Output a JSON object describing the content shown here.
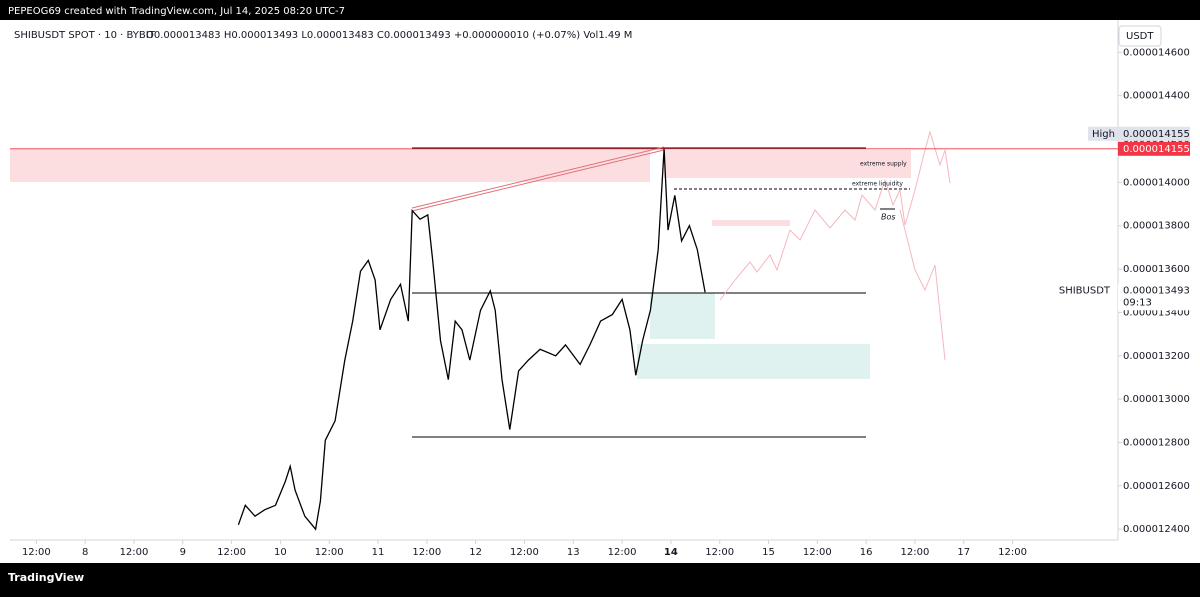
{
  "header": {
    "title": "PEPEOG69 created with TradingView.com, Jul 14, 2025 08:20 UTC-7"
  },
  "chart_data": {
    "type": "line",
    "symbol_legend": "SHIBUSDT SPOT · 10 · BYBIT",
    "ohlc_legend": "O0.000013483 H0.000013493 L0.000013483 C0.000013493 +0.000000010 (+0.07%) Vol1.49 M",
    "currency": "USDT",
    "x": [
      9.57,
      9.64,
      9.74,
      9.84,
      9.95,
      10.05,
      10.1,
      10.15,
      10.25,
      10.36,
      10.41,
      10.46,
      10.56,
      10.66,
      10.74,
      10.82,
      10.9,
      10.97,
      11.02,
      11.13,
      11.23,
      11.31,
      11.35,
      11.43,
      11.51,
      11.56,
      11.64,
      11.72,
      11.79,
      11.86,
      11.94,
      12.05,
      12.15,
      12.2,
      12.27,
      12.35,
      12.44,
      12.54,
      12.66,
      12.82,
      12.92,
      13.07,
      13.17,
      13.28,
      13.4,
      13.5,
      13.58,
      13.64,
      13.71,
      13.79,
      13.87,
      13.93,
      13.97,
      14.04,
      14.11,
      14.19,
      14.27,
      14.35
    ],
    "series": [
      {
        "name": "SHIBUSDT",
        "color": "#000000",
        "values": [
          1.242e-05,
          1.251e-05,
          1.246e-05,
          1.249e-05,
          1.251e-05,
          1.262e-05,
          1.269e-05,
          1.258e-05,
          1.246e-05,
          1.24e-05,
          1.253e-05,
          1.281e-05,
          1.29e-05,
          1.318e-05,
          1.336e-05,
          1.359e-05,
          1.364e-05,
          1.355e-05,
          1.332e-05,
          1.346e-05,
          1.353e-05,
          1.336e-05,
          1.387e-05,
          1.383e-05,
          1.385e-05,
          1.364e-05,
          1.327e-05,
          1.309e-05,
          1.336e-05,
          1.332e-05,
          1.318e-05,
          1.341e-05,
          1.35e-05,
          1.341e-05,
          1.309e-05,
          1.286e-05,
          1.313e-05,
          1.318e-05,
          1.323e-05,
          1.32e-05,
          1.325e-05,
          1.316e-05,
          1.325e-05,
          1.336e-05,
          1.339e-05,
          1.346e-05,
          1.332e-05,
          1.311e-05,
          1.327e-05,
          1.341e-05,
          1.369e-05,
          1.4155e-05,
          1.378e-05,
          1.394e-05,
          1.373e-05,
          1.38e-05,
          1.369e-05,
          1.3493e-05
        ]
      }
    ],
    "xlim": [
      7.23,
      18.58
    ],
    "ylim": [
      1.235e-05,
      1.474e-05
    ],
    "xticks": [
      {
        "value": 7.5,
        "label": "12:00"
      },
      8,
      {
        "value": 8.5,
        "label": "12:00"
      },
      9,
      {
        "value": 9.5,
        "label": "12:00"
      },
      10,
      {
        "value": 10.5,
        "label": "12:00"
      },
      11,
      {
        "value": 11.5,
        "label": "12:00"
      },
      12,
      {
        "value": 12.5,
        "label": "12:00"
      },
      13,
      {
        "value": 13.5,
        "label": "12:00"
      },
      14,
      {
        "value": 14.5,
        "label": "12:00"
      },
      15,
      {
        "value": 15.5,
        "label": "12:00"
      },
      16,
      {
        "value": 16.5,
        "label": "12:00"
      },
      17,
      {
        "value": 17.5,
        "label": "12:00"
      }
    ],
    "yticks": [
      {
        "value": 1.24e-05,
        "label": "0.000012400"
      },
      {
        "value": 1.26e-05,
        "label": "0.000012600"
      },
      {
        "value": 1.28e-05,
        "label": "0.000012800"
      },
      {
        "value": 1.3e-05,
        "label": "0.000013000"
      },
      {
        "value": 1.32e-05,
        "label": "0.000013200"
      },
      {
        "value": 1.34e-05,
        "label": "0.000013400"
      },
      {
        "value": 1.36e-05,
        "label": "0.000013600"
      },
      {
        "value": 1.38e-05,
        "label": "0.000013800"
      },
      {
        "value": 1.4e-05,
        "label": "0.000014000"
      },
      {
        "value": 1.42e-05,
        "label": "0.000014200"
      },
      {
        "value": 1.44e-05,
        "label": "0.000014400"
      },
      {
        "value": 1.46e-05,
        "label": "0.000014600"
      }
    ],
    "high": {
      "label": "High",
      "value": 1.4155e-05
    },
    "last": {
      "value": 1.3493e-05,
      "countdown": "09:13"
    },
    "annotations": [
      "extreme supply",
      "extreme liquidity",
      "Bos"
    ]
  },
  "footer": {
    "brand": "TradingView"
  }
}
